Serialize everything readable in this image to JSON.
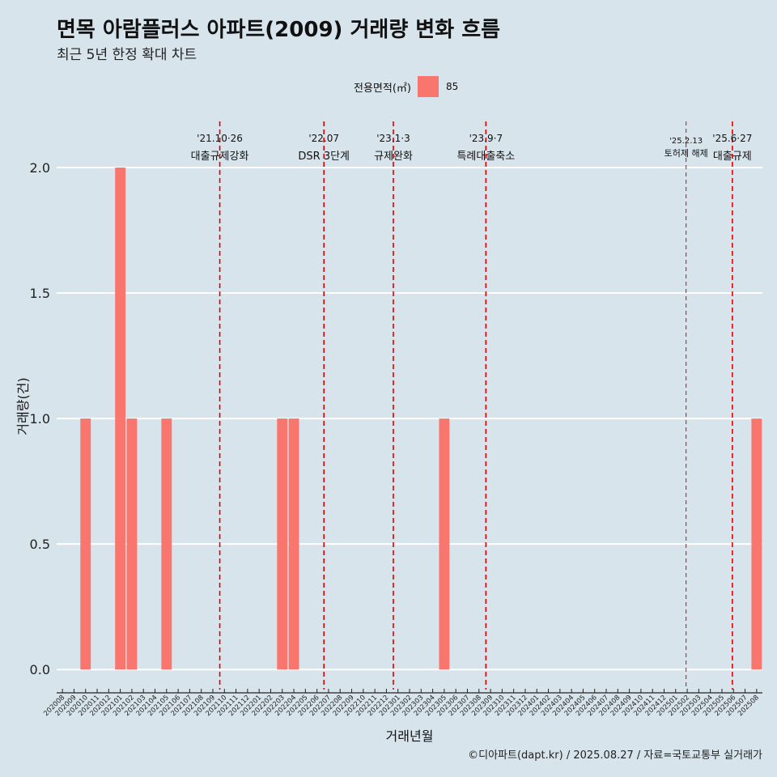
{
  "title": "면목 아람플러스 아파트(2009) 거래량 변화 흐름",
  "subtitle": "최근 5년 한정 확대 차트",
  "legend": {
    "title": "전용면적(㎡)",
    "entry": "85",
    "color": "#f8766d"
  },
  "caption": "©디아파트(dapt.kr) / 2025.08.27 / 자료=국토교통부 실거래가",
  "chart_data": {
    "type": "bar",
    "title": "면목 아람플러스 아파트(2009) 거래량 변화 흐름",
    "xlabel": "거래년월",
    "ylabel": "거래량(건)",
    "ylim": [
      -0.08,
      2.2
    ],
    "yticks": [
      0.0,
      0.5,
      1.0,
      1.5,
      2.0
    ],
    "ytick_labels": [
      "0.0",
      "0.5",
      "1.0",
      "1.5",
      "2.0"
    ],
    "grid": true,
    "bar_color": "#f8766d",
    "categories": [
      "202008",
      "202009",
      "202010",
      "202011",
      "202012",
      "202101",
      "202102",
      "202103",
      "202104",
      "202105",
      "202106",
      "202107",
      "202108",
      "202109",
      "202110",
      "202111",
      "202112",
      "202201",
      "202202",
      "202203",
      "202204",
      "202205",
      "202206",
      "202207",
      "202208",
      "202209",
      "202210",
      "202211",
      "202212",
      "202301",
      "202302",
      "202303",
      "202304",
      "202305",
      "202306",
      "202307",
      "202308",
      "202309",
      "202310",
      "202311",
      "202312",
      "202401",
      "202402",
      "202403",
      "202404",
      "202405",
      "202406",
      "202407",
      "202408",
      "202409",
      "202410",
      "202411",
      "202412",
      "202501",
      "202502",
      "202503",
      "202504",
      "202505",
      "202506",
      "202507",
      "202508"
    ],
    "values": [
      0,
      0,
      1,
      0,
      0,
      2,
      1,
      0,
      0,
      1,
      0,
      0,
      0,
      0,
      0,
      0,
      0,
      0,
      0,
      1,
      1,
      0,
      0,
      0,
      0,
      0,
      0,
      0,
      0,
      0,
      0,
      0,
      0,
      1,
      0,
      0,
      0,
      0,
      0,
      0,
      0,
      0,
      0,
      0,
      0,
      0,
      0,
      0,
      0,
      0,
      0,
      0,
      0,
      0,
      0,
      0,
      0,
      0,
      0,
      0,
      1
    ],
    "events": [
      {
        "x": 14.1,
        "label_line1": "'21.10·26",
        "label_line2": "대출규제강화",
        "small": false
      },
      {
        "x": 23.1,
        "label_line1": "'22.07",
        "label_line2": "DSR 3단계",
        "small": false
      },
      {
        "x": 29.1,
        "label_line1": "'23.1·3",
        "label_line2": "규제완화",
        "small": false
      },
      {
        "x": 37.1,
        "label_line1": "'23.9·7",
        "label_line2": "특례대출축소",
        "small": false
      },
      {
        "x": 54.4,
        "label_line1": "'25.2.13",
        "label_line2": "토허제 해제",
        "small": true
      },
      {
        "x": 58.4,
        "label_line1": "'25.6·27",
        "label_line2": "대출규제",
        "small": false
      }
    ]
  }
}
